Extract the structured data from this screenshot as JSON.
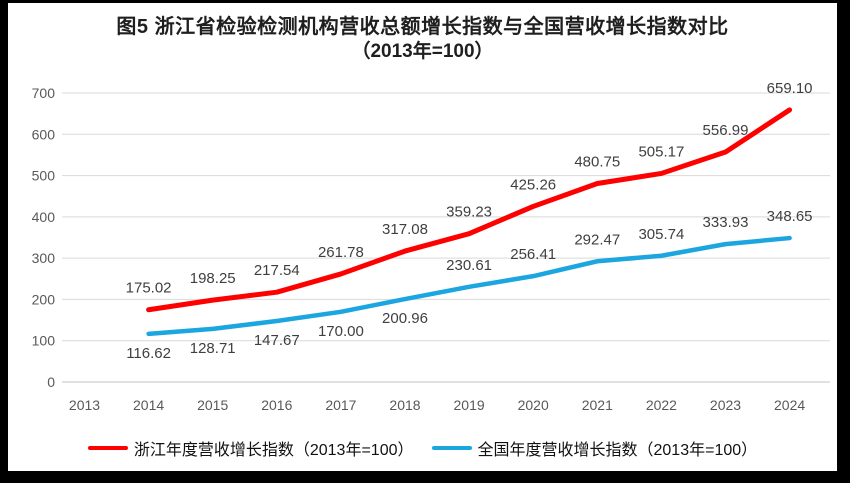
{
  "title": {
    "line1": "图5  浙江省检验检测机构营收总额增长指数与全国营收增长指数对比",
    "line2": "（2013年=100）"
  },
  "chart_data": {
    "type": "line",
    "categories": [
      "2013",
      "2014",
      "2015",
      "2016",
      "2017",
      "2018",
      "2019",
      "2020",
      "2021",
      "2022",
      "2023",
      "2024"
    ],
    "series": [
      {
        "name": "浙江年度营收增长指数（2013年=100）",
        "color": "#fe0000",
        "start_index": 1,
        "values": [
          175.02,
          198.25,
          217.54,
          261.78,
          317.08,
          359.23,
          425.26,
          480.75,
          505.17,
          556.99,
          659.1
        ],
        "label_position": "above"
      },
      {
        "name": "全国年度营收增长指数（2013年=100）",
        "color": "#1ca6e0",
        "start_index": 1,
        "values": [
          116.62,
          128.71,
          147.67,
          170.0,
          200.96,
          230.61,
          256.41,
          292.47,
          305.74,
          333.93,
          348.65
        ],
        "label_positions": [
          "below",
          "below",
          "below",
          "below",
          "below",
          "above",
          "above",
          "above",
          "above",
          "above",
          "above"
        ]
      }
    ],
    "ylim": [
      0,
      700
    ],
    "yticks": [
      0,
      100,
      200,
      300,
      400,
      500,
      600,
      700
    ],
    "grid": "horizontal",
    "legend_position": "bottom",
    "colors": {
      "gridline": "#d9d9d9",
      "baseline": "#c3c3c3",
      "tick_label": "#595959",
      "data_label": "#3f3f3f"
    }
  },
  "legend": {
    "items": [
      {
        "label": "浙江年度营收增长指数（2013年=100）"
      },
      {
        "label": "全国年度营收增长指数（2013年=100）"
      }
    ]
  }
}
